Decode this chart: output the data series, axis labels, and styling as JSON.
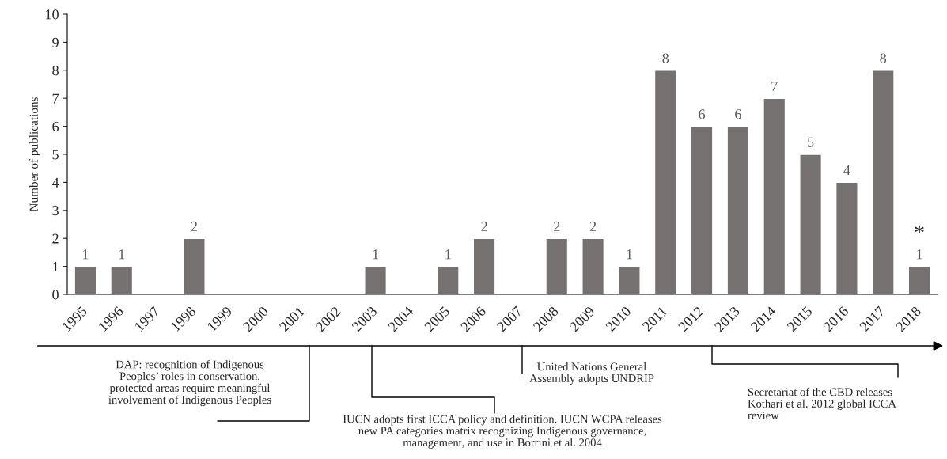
{
  "chart_data": {
    "type": "bar",
    "ylabel": "Number of publications",
    "categories": [
      "1995",
      "1996",
      "1997",
      "1998",
      "1999",
      "2000",
      "2001",
      "2002",
      "2003",
      "2004",
      "2005",
      "2006",
      "2007",
      "2008",
      "2009",
      "2010",
      "2011",
      "2012",
      "2013",
      "2014",
      "2015",
      "2016",
      "2017",
      "2018"
    ],
    "values": [
      1,
      1,
      0,
      2,
      0,
      0,
      0,
      0,
      1,
      0,
      1,
      2,
      0,
      2,
      2,
      1,
      8,
      6,
      6,
      7,
      5,
      4,
      8,
      1
    ],
    "value_labels": [
      "1",
      "1",
      null,
      "2",
      null,
      null,
      null,
      null,
      "1",
      null,
      "1",
      "2",
      null,
      "2",
      "2",
      "1",
      "8",
      "6",
      "6",
      "7",
      "5",
      "4",
      "8",
      "1"
    ],
    "color": "#767171",
    "ylim": [
      0,
      10
    ],
    "yticks": [
      0,
      1,
      2,
      3,
      4,
      5,
      6,
      7,
      8,
      9,
      10
    ],
    "grid": false,
    "legend": false,
    "annotations": [
      {
        "text": "*",
        "x": "2018",
        "y": 1
      },
      "DAP: recognition of Indigenous\nPeoples’ roles in conservation,\nprotected areas require meaningful\ninvolvement of Indigenous Peoples",
      "IUCN adopts first ICCA policy and definition. IUCN WCPA releases\nnew PA categories matrix recognizing Indigenous governance,\nmanagement, and use in Borrini et al. 2004",
      "United Nations General\nAssembly adopts UNDRIP",
      "Secretariat of the CBD releases\nKothari et al. 2012 global ICCA\nreview"
    ]
  }
}
